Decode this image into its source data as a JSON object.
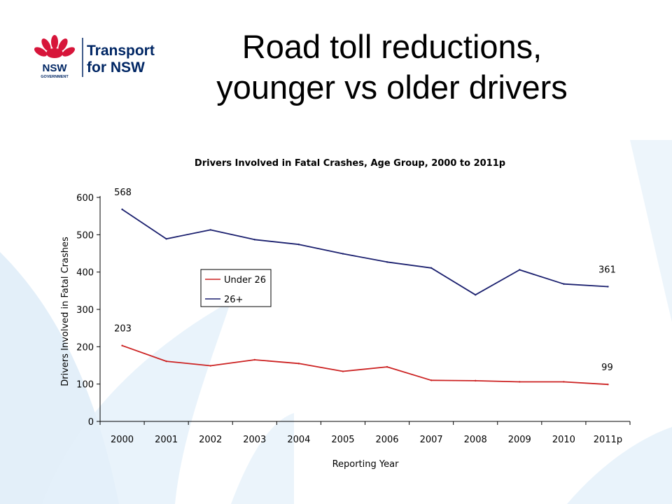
{
  "slide": {
    "title_line1": "Road toll reductions,",
    "title_line2": "younger vs older drivers"
  },
  "logo": {
    "org": "NSW",
    "org_sub": "GOVERNMENT",
    "name_line1": "Transport",
    "name_line2": "for NSW",
    "colors": {
      "waratah": "#d7153a",
      "navy": "#002664"
    }
  },
  "chart_data": {
    "type": "line",
    "title": "Drivers Involved in Fatal Crashes, Age Group, 2000 to 2011p",
    "xlabel": "Reporting Year",
    "ylabel": "Drivers Involved in Fatal Crashes",
    "categories": [
      "2000",
      "2001",
      "2002",
      "2003",
      "2004",
      "2005",
      "2006",
      "2007",
      "2008",
      "2009",
      "2010",
      "2011p"
    ],
    "ylim": [
      0,
      600
    ],
    "yticks": [
      0,
      100,
      200,
      300,
      400,
      500,
      600
    ],
    "grid": false,
    "legend_position": "left-middle",
    "series": [
      {
        "name": "Under 26",
        "color": "#cc2222",
        "values": [
          203,
          161,
          149,
          165,
          155,
          134,
          146,
          110,
          109,
          106,
          106,
          99
        ]
      },
      {
        "name": "26+",
        "color": "#1a1f6e",
        "values": [
          568,
          489,
          513,
          487,
          474,
          449,
          427,
          411,
          339,
          406,
          368,
          361
        ]
      }
    ],
    "annotations": [
      {
        "series": 1,
        "index": 0,
        "text": "568"
      },
      {
        "series": 1,
        "index": 11,
        "text": "361"
      },
      {
        "series": 0,
        "index": 0,
        "text": "203"
      },
      {
        "series": 0,
        "index": 11,
        "text": "99"
      }
    ]
  }
}
